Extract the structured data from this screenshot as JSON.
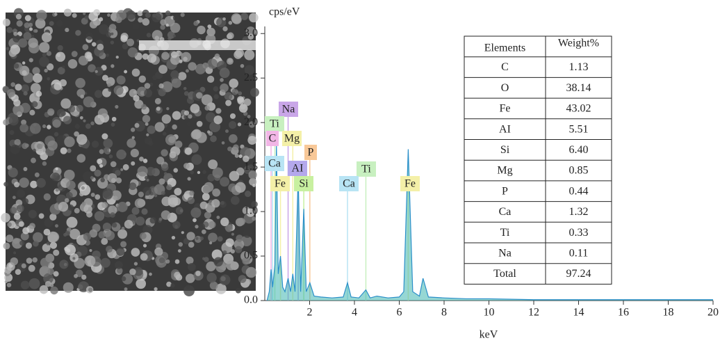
{
  "chart_data": {
    "type": "area",
    "ylabel": "cps/eV",
    "xlabel": "keV",
    "xlim": [
      0,
      20
    ],
    "xticks": [
      2,
      4,
      6,
      8,
      10,
      12,
      14,
      16,
      18,
      20
    ],
    "ylim": [
      0,
      3.08
    ],
    "yticks": [
      {
        "value": 0,
        "label": "0.0"
      },
      {
        "value": 0.5,
        "label": "0.5"
      },
      {
        "value": 1,
        "label": "1.0"
      },
      {
        "value": 1.5,
        "label": "1.5"
      },
      {
        "value": 2,
        "label": "2.0"
      },
      {
        "value": 2.5,
        "label": "2.5"
      },
      {
        "value": 3,
        "label": "3.0"
      }
    ],
    "x": [
      0.1,
      0.2,
      0.28,
      0.35,
      0.45,
      0.52,
      0.6,
      0.7,
      0.8,
      0.9,
      1.04,
      1.15,
      1.25,
      1.35,
      1.49,
      1.6,
      1.74,
      1.85,
      2.01,
      2.2,
      2.5,
      3.0,
      3.5,
      3.69,
      3.85,
      4.2,
      4.51,
      4.7,
      5.0,
      5.5,
      6.0,
      6.2,
      6.4,
      6.6,
      6.9,
      7.06,
      7.3,
      8,
      9,
      10,
      12,
      14,
      16,
      18,
      20
    ],
    "values": [
      0,
      0.1,
      0.35,
      0.15,
      0.4,
      1.75,
      0.3,
      0.5,
      0.15,
      0.1,
      0.25,
      0.1,
      0.3,
      0.1,
      1.42,
      0.1,
      1.03,
      0.1,
      0.2,
      0.05,
      0.04,
      0.03,
      0.04,
      0.2,
      0.04,
      0.03,
      0.12,
      0.03,
      0.05,
      0.03,
      0.04,
      0.1,
      1.7,
      0.1,
      0.05,
      0.25,
      0.04,
      0.03,
      0.02,
      0.02,
      0.01,
      0.01,
      0.01,
      0.01,
      0.01
    ],
    "color": "#3fb7b0",
    "peak_labels": [
      {
        "text": "Na",
        "x": 1.04,
        "color": "#c9a6e8"
      },
      {
        "text": "Ti",
        "x": 0.45,
        "color": "#c8f0c0"
      },
      {
        "text": "C",
        "x": 0.28,
        "color": "#f2b6e6"
      },
      {
        "text": "Mg",
        "x": 1.25,
        "color": "#f4f0a8"
      },
      {
        "text": "P",
        "x": 2.01,
        "color": "#f8c898"
      },
      {
        "text": "Ca",
        "x": 0.34,
        "color": "#b8e4f4"
      },
      {
        "text": "AI",
        "x": 1.49,
        "color": "#b4a8ec"
      },
      {
        "text": "Ti",
        "x": 4.51,
        "color": "#c8f0c0"
      },
      {
        "text": "Fe",
        "x": 0.7,
        "color": "#f4f0a8"
      },
      {
        "text": "Si",
        "x": 1.74,
        "color": "#c8f0a0"
      },
      {
        "text": "Ca",
        "x": 3.69,
        "color": "#b8e4f4"
      },
      {
        "text": "Fe",
        "x": 6.4,
        "color": "#f4f0a8"
      }
    ],
    "table": {
      "header": [
        "Elements",
        "Weight%"
      ],
      "rows": [
        [
          "C",
          "1.13"
        ],
        [
          "O",
          "38.14"
        ],
        [
          "Fe",
          "43.02"
        ],
        [
          "AI",
          "5.51"
        ],
        [
          "Si",
          "6.40"
        ],
        [
          "Mg",
          "0.85"
        ],
        [
          "P",
          "0.44"
        ],
        [
          "Ca",
          "1.32"
        ],
        [
          "Ti",
          "0.33"
        ],
        [
          "Na",
          "0.11"
        ],
        [
          "Total",
          "97.24"
        ]
      ]
    }
  }
}
